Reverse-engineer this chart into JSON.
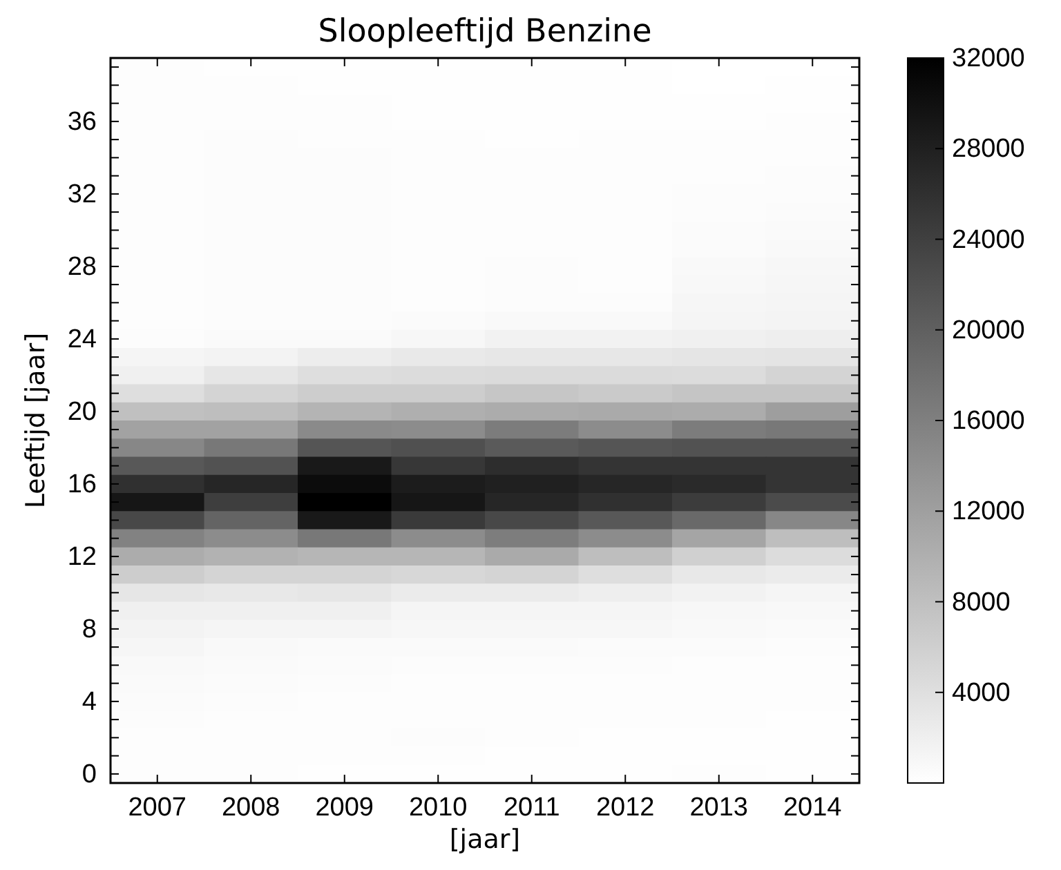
{
  "chart_data": {
    "type": "heatmap",
    "title": "Sloopleeftijd Benzine",
    "xlabel": "[jaar]",
    "ylabel": "Leeftijd [jaar]",
    "categories": [
      "2007",
      "2008",
      "2009",
      "2010",
      "2011",
      "2012",
      "2013",
      "2014"
    ],
    "y_categories": [
      null,
      null,
      null,
      "36",
      null,
      null,
      null,
      "32",
      null,
      null,
      null,
      "28",
      null,
      null,
      null,
      "24",
      null,
      null,
      null,
      "20",
      null,
      null,
      null,
      "16",
      null,
      null,
      null,
      "12",
      null,
      null,
      null,
      "8",
      null,
      null,
      null,
      "4",
      null,
      null,
      null,
      "0"
    ],
    "cells": [
      [
        200,
        150,
        150,
        100,
        100,
        100,
        50,
        50
      ],
      [
        250,
        200,
        150,
        100,
        100,
        100,
        50,
        100
      ],
      [
        300,
        250,
        200,
        150,
        100,
        100,
        100,
        150
      ],
      [
        300,
        300,
        250,
        150,
        150,
        150,
        150,
        200
      ],
      [
        300,
        350,
        300,
        200,
        150,
        200,
        200,
        250
      ],
      [
        300,
        400,
        350,
        200,
        200,
        200,
        250,
        300
      ],
      [
        300,
        400,
        400,
        250,
        250,
        250,
        300,
        350
      ],
      [
        300,
        400,
        400,
        250,
        250,
        250,
        350,
        400
      ],
      [
        300,
        400,
        400,
        250,
        300,
        250,
        400,
        450
      ],
      [
        300,
        400,
        400,
        300,
        300,
        250,
        450,
        600
      ],
      [
        300,
        400,
        400,
        300,
        300,
        300,
        500,
        800
      ],
      [
        300,
        400,
        400,
        300,
        350,
        300,
        700,
        1000
      ],
      [
        300,
        400,
        400,
        300,
        350,
        300,
        900,
        1100
      ],
      [
        300,
        400,
        400,
        300,
        400,
        400,
        1100,
        1200
      ],
      [
        300,
        400,
        400,
        500,
        800,
        800,
        1300,
        1400
      ],
      [
        400,
        600,
        600,
        1000,
        1600,
        1600,
        1900,
        2100
      ],
      [
        1300,
        1500,
        2300,
        2800,
        3000,
        3000,
        3300,
        3400
      ],
      [
        1900,
        3100,
        4100,
        4400,
        4500,
        4500,
        4400,
        5400
      ],
      [
        4100,
        5400,
        6300,
        6300,
        7200,
        6700,
        7300,
        7300
      ],
      [
        7900,
        8200,
        9400,
        10000,
        10400,
        10700,
        10400,
        12200
      ],
      [
        11700,
        11700,
        14700,
        14400,
        16400,
        14400,
        16400,
        16900
      ],
      [
        15100,
        16900,
        21300,
        22000,
        20700,
        21300,
        21700,
        21700
      ],
      [
        21000,
        21700,
        28900,
        25100,
        26400,
        25500,
        25500,
        25500
      ],
      [
        26000,
        27200,
        30500,
        28500,
        28000,
        27200,
        26700,
        25500
      ],
      [
        29200,
        24200,
        32000,
        29200,
        27200,
        26000,
        24500,
        22600
      ],
      [
        23000,
        19500,
        28900,
        24700,
        23000,
        21000,
        18800,
        15100
      ],
      [
        15700,
        14400,
        16900,
        14400,
        16300,
        14400,
        11300,
        8200
      ],
      [
        10400,
        9700,
        9200,
        9200,
        10700,
        8200,
        5900,
        4400
      ],
      [
        6300,
        5400,
        5400,
        5000,
        5400,
        4100,
        2900,
        2500
      ],
      [
        3100,
        2900,
        3100,
        2500,
        2500,
        2100,
        1600,
        1300
      ],
      [
        1900,
        1900,
        1900,
        1300,
        1300,
        1300,
        1000,
        900
      ],
      [
        1500,
        1300,
        1300,
        1000,
        1000,
        1000,
        800,
        600
      ],
      [
        1100,
        800,
        600,
        600,
        600,
        500,
        500,
        400
      ],
      [
        800,
        600,
        500,
        400,
        400,
        400,
        300,
        300
      ],
      [
        600,
        500,
        400,
        300,
        300,
        300,
        300,
        200
      ],
      [
        500,
        400,
        300,
        300,
        200,
        200,
        200,
        200
      ],
      [
        400,
        300,
        300,
        200,
        200,
        200,
        200,
        150
      ],
      [
        300,
        300,
        250,
        400,
        200,
        150,
        150,
        150
      ],
      [
        250,
        250,
        200,
        200,
        150,
        150,
        150,
        100
      ],
      [
        200,
        200,
        150,
        150,
        100,
        100,
        250,
        100
      ]
    ],
    "clim": [
      0,
      32000
    ],
    "cticks": [
      4000,
      8000,
      12000,
      16000,
      20000,
      24000,
      28000,
      32000
    ]
  }
}
